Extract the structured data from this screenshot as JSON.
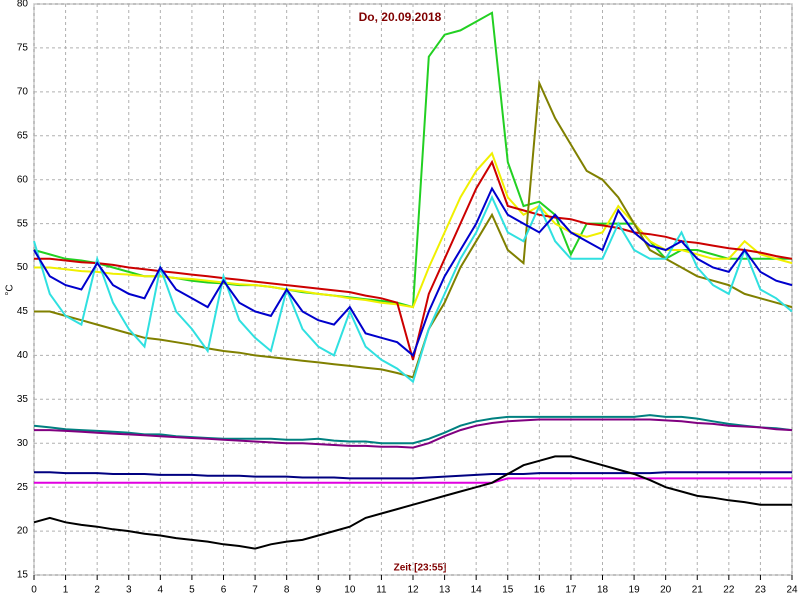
{
  "chart_data": {
    "type": "line",
    "title": "Do, 20.09.2018",
    "x_label": "Zeit [23:55]",
    "y_label": "°C",
    "xlim": [
      0,
      24
    ],
    "ylim": [
      15,
      80
    ],
    "xticks": [
      0,
      1,
      2,
      3,
      4,
      5,
      6,
      7,
      8,
      9,
      10,
      11,
      12,
      13,
      14,
      15,
      16,
      17,
      18,
      19,
      20,
      21,
      22,
      23,
      24
    ],
    "yticks": [
      15,
      20,
      25,
      30,
      35,
      40,
      45,
      50,
      55,
      60,
      65,
      70,
      75,
      80
    ],
    "grid": true,
    "x": [
      0,
      0.5,
      1,
      1.5,
      2,
      2.5,
      3,
      3.5,
      4,
      4.5,
      5,
      5.5,
      6,
      6.5,
      7,
      7.5,
      8,
      8.5,
      9,
      9.5,
      10,
      10.5,
      11,
      11.5,
      12,
      12.5,
      13,
      13.5,
      14,
      14.5,
      15,
      15.5,
      16,
      16.5,
      17,
      17.5,
      18,
      18.5,
      19,
      19.5,
      20,
      20.5,
      21,
      21.5,
      22,
      22.5,
      23,
      23.5,
      24
    ],
    "series": [
      {
        "color": "#22d022",
        "values": [
          52,
          51.5,
          51,
          50.8,
          50.5,
          50,
          49.5,
          49,
          49,
          48.8,
          48.5,
          48.3,
          48.2,
          48,
          48,
          47.8,
          47.5,
          47.2,
          47,
          46.8,
          46.6,
          46.4,
          46.2,
          46,
          45.5,
          74,
          76.5,
          77,
          78,
          79,
          62,
          57,
          57.5,
          56,
          51.5,
          55,
          55,
          55,
          55,
          53,
          51,
          52,
          52,
          51.5,
          51,
          51,
          51,
          51,
          51
        ]
      },
      {
        "color": "#f0f000",
        "values": [
          50,
          50,
          49.8,
          49.6,
          49.5,
          49.3,
          49.2,
          49,
          49,
          48.8,
          48.7,
          48.5,
          48.3,
          48.1,
          48,
          47.8,
          47.5,
          47.3,
          47,
          46.8,
          46.5,
          46.3,
          46,
          45.8,
          45.5,
          50,
          54,
          58,
          61,
          63,
          58,
          56,
          57,
          55,
          54,
          53.5,
          54,
          57,
          55,
          53,
          52,
          52,
          51.5,
          51,
          51,
          53,
          51.5,
          51,
          50.5
        ]
      },
      {
        "color": "#cc0000",
        "values": [
          51,
          51,
          50.8,
          50.6,
          50.5,
          50.3,
          50,
          49.8,
          49.6,
          49.4,
          49.2,
          49,
          48.8,
          48.6,
          48.4,
          48.2,
          48,
          47.8,
          47.6,
          47.4,
          47.2,
          46.8,
          46.5,
          46,
          39.5,
          47,
          51,
          55,
          59,
          62,
          57,
          56.5,
          56,
          55.7,
          55.5,
          55,
          54.8,
          54.5,
          54,
          53.8,
          53.5,
          53,
          52.8,
          52.5,
          52.2,
          52,
          51.7,
          51.3,
          51
        ]
      },
      {
        "color": "#808000",
        "values": [
          45,
          45,
          44.5,
          44,
          43.5,
          43,
          42.5,
          42,
          41.8,
          41.5,
          41.2,
          40.8,
          40.5,
          40.3,
          40,
          39.8,
          39.6,
          39.4,
          39.2,
          39,
          38.8,
          38.6,
          38.4,
          38,
          37.5,
          43,
          46,
          50,
          53,
          56,
          52,
          50.5,
          71,
          67,
          64,
          61,
          60,
          58,
          55,
          52,
          51,
          50,
          49,
          48.5,
          48,
          47,
          46.5,
          46,
          45.5
        ]
      },
      {
        "color": "#30e0e0",
        "values": [
          53,
          47,
          44.5,
          43.5,
          51,
          46,
          43,
          41,
          50,
          45,
          43,
          40.5,
          49,
          44,
          42,
          40.5,
          47.5,
          43,
          41,
          40,
          45,
          41,
          39.5,
          38.5,
          37,
          43,
          47,
          51,
          54,
          58,
          54,
          53,
          57,
          53,
          51,
          51,
          51,
          55,
          52,
          51,
          51,
          54,
          50,
          48,
          47,
          52,
          47.5,
          46.5,
          45
        ]
      },
      {
        "color": "#0000cc",
        "values": [
          52,
          49,
          48,
          47.5,
          50.5,
          48,
          47,
          46.5,
          50,
          47.5,
          46.5,
          45.5,
          48.5,
          46,
          45,
          44.5,
          47.5,
          45,
          44,
          43.5,
          45.5,
          42.5,
          42,
          41.5,
          40,
          45,
          49,
          52,
          55,
          59,
          56,
          55,
          54,
          56,
          54,
          53,
          52,
          56.5,
          54,
          52.5,
          52,
          53,
          51,
          50,
          49.5,
          52,
          49.5,
          48.5,
          48
        ]
      },
      {
        "color": "#008080",
        "values": [
          32,
          31.8,
          31.6,
          31.5,
          31.4,
          31.3,
          31.2,
          31,
          31,
          30.8,
          30.7,
          30.6,
          30.5,
          30.5,
          30.5,
          30.5,
          30.4,
          30.4,
          30.5,
          30.3,
          30.2,
          30.2,
          30,
          30,
          30,
          30.5,
          31.2,
          32,
          32.5,
          32.8,
          33,
          33,
          33,
          33,
          33,
          33,
          33,
          33,
          33,
          33.2,
          33,
          33,
          32.8,
          32.5,
          32.2,
          32,
          31.8,
          31.7,
          31.5
        ]
      },
      {
        "color": "#800080",
        "values": [
          31.5,
          31.5,
          31.4,
          31.3,
          31.2,
          31.1,
          31,
          30.9,
          30.8,
          30.7,
          30.6,
          30.5,
          30.4,
          30.3,
          30.2,
          30.1,
          30,
          30,
          29.9,
          29.8,
          29.7,
          29.7,
          29.6,
          29.6,
          29.5,
          30,
          30.8,
          31.5,
          32,
          32.3,
          32.5,
          32.6,
          32.7,
          32.7,
          32.7,
          32.7,
          32.7,
          32.7,
          32.7,
          32.7,
          32.6,
          32.5,
          32.3,
          32.2,
          32,
          31.9,
          31.8,
          31.6,
          31.5
        ]
      },
      {
        "color": "#000080",
        "values": [
          26.7,
          26.7,
          26.6,
          26.6,
          26.6,
          26.5,
          26.5,
          26.5,
          26.4,
          26.4,
          26.4,
          26.3,
          26.3,
          26.3,
          26.2,
          26.2,
          26.2,
          26.1,
          26.1,
          26.1,
          26,
          26,
          26,
          26,
          26,
          26.1,
          26.2,
          26.3,
          26.4,
          26.5,
          26.5,
          26.5,
          26.6,
          26.6,
          26.6,
          26.6,
          26.6,
          26.6,
          26.6,
          26.6,
          26.7,
          26.7,
          26.7,
          26.7,
          26.7,
          26.7,
          26.7,
          26.7,
          26.7
        ]
      },
      {
        "color": "#e000e0",
        "values": [
          25.5,
          25.5,
          25.5,
          25.5,
          25.5,
          25.5,
          25.5,
          25.5,
          25.5,
          25.5,
          25.5,
          25.5,
          25.5,
          25.5,
          25.5,
          25.5,
          25.5,
          25.5,
          25.5,
          25.5,
          25.5,
          25.5,
          25.5,
          25.5,
          25.5,
          25.5,
          25.5,
          25.5,
          25.5,
          25.5,
          26,
          26,
          26,
          26,
          26,
          26,
          26,
          26,
          26,
          26,
          26,
          26,
          26,
          26,
          26,
          26,
          26,
          26,
          26
        ]
      },
      {
        "color": "#000000",
        "values": [
          21,
          21.5,
          21,
          20.7,
          20.5,
          20.2,
          20,
          19.7,
          19.5,
          19.2,
          19,
          18.8,
          18.5,
          18.3,
          18,
          18.5,
          18.8,
          19,
          19.5,
          20,
          20.5,
          21.5,
          22,
          22.5,
          23,
          23.5,
          24,
          24.5,
          25,
          25.5,
          26.5,
          27.5,
          28,
          28.5,
          28.5,
          28,
          27.5,
          27,
          26.5,
          25.8,
          25,
          24.5,
          24,
          23.8,
          23.5,
          23.3,
          23,
          23,
          23
        ]
      }
    ]
  }
}
